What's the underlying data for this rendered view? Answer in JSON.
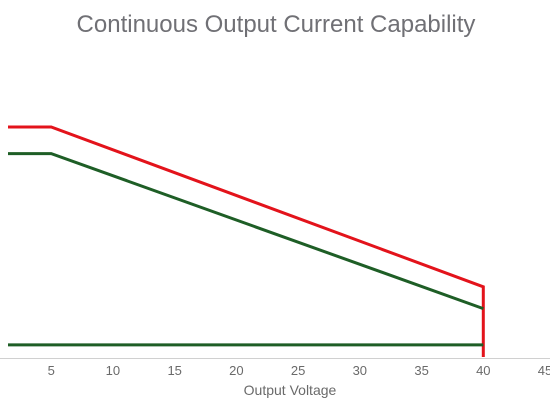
{
  "chart_data": {
    "type": "line",
    "title": "Continuous Output Current Capability",
    "xlabel": "Output Voltage",
    "ylabel": "",
    "xlim": [
      1.5,
      45
    ],
    "x_ticks": [
      5,
      10,
      15,
      20,
      25,
      30,
      35,
      40,
      45
    ],
    "grid": false,
    "legend": "none",
    "series": [
      {
        "color": "#e3131b",
        "points": [
          [
            1.5,
            10.0
          ],
          [
            5,
            10.0
          ],
          [
            40,
            3.4
          ],
          [
            40,
            0.5
          ]
        ]
      },
      {
        "color": "#1e5e26",
        "points": [
          [
            1.5,
            8.9
          ],
          [
            5,
            8.9
          ],
          [
            40,
            2.5
          ]
        ]
      },
      {
        "color": "#1e5e26",
        "points": [
          [
            1.5,
            1.0
          ],
          [
            40,
            1.0
          ]
        ]
      }
    ]
  }
}
